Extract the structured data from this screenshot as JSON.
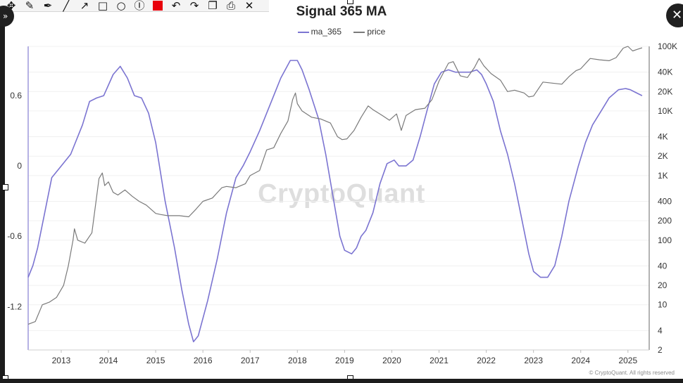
{
  "toolbar": {
    "tools": [
      {
        "icon": "move-icon",
        "glyph": "✥"
      },
      {
        "icon": "pen-icon",
        "glyph": "✎"
      },
      {
        "icon": "marker-icon",
        "glyph": "✒"
      },
      {
        "icon": "line-icon",
        "glyph": "╱"
      },
      {
        "icon": "arrow-icon",
        "glyph": "↗"
      },
      {
        "icon": "rectangle-icon",
        "glyph": "□"
      },
      {
        "icon": "ellipse-icon",
        "glyph": "○"
      },
      {
        "icon": "text-icon",
        "glyph": "Ⓘ"
      },
      {
        "icon": "color-swatch",
        "glyph": "",
        "color": "#e8000b"
      },
      {
        "icon": "undo-icon",
        "glyph": "↶"
      },
      {
        "icon": "redo-icon",
        "glyph": "↷"
      },
      {
        "icon": "copy-icon",
        "glyph": "❐"
      },
      {
        "icon": "save-icon",
        "glyph": "⎙"
      },
      {
        "icon": "close-icon",
        "glyph": "✕"
      }
    ]
  },
  "close_button": {
    "icon": "close-circle-icon",
    "glyph": "✕"
  },
  "corner_button": {
    "icon": "expand-icon",
    "glyph": "»"
  },
  "chart_data": {
    "type": "line",
    "title": "Signal 365 MA",
    "watermark": "CryptoQuant",
    "credit": "© CryptoQuant. All rights reserved",
    "xlabel": "",
    "x_ticks": [
      "2013",
      "2014",
      "2015",
      "2016",
      "2017",
      "2018",
      "2019",
      "2020",
      "2021",
      "2022",
      "2023",
      "2024",
      "2025"
    ],
    "x_range": [
      2012.3,
      2025.45
    ],
    "y_left": {
      "ticks": [
        "0.6",
        "0",
        "-0.6",
        "-1.2"
      ],
      "tick_values": [
        0.6,
        0,
        -0.6,
        -1.2
      ],
      "range": [
        -1.57,
        1.02
      ]
    },
    "y_right": {
      "scale": "log",
      "ticks": [
        "100K",
        "40K",
        "20K",
        "10K",
        "4K",
        "2K",
        "1K",
        "400",
        "200",
        "100",
        "40",
        "20",
        "10",
        "4",
        "2"
      ],
      "tick_values": [
        100000,
        40000,
        20000,
        10000,
        4000,
        2000,
        1000,
        400,
        200,
        100,
        40,
        20,
        10,
        4,
        2
      ],
      "range": [
        2,
        100000
      ]
    },
    "legend_position": "top-center",
    "grid": true,
    "series": [
      {
        "name": "ma_365",
        "axis": "left",
        "color": "#7b74d1",
        "x": [
          2012.3,
          2012.4,
          2012.5,
          2012.65,
          2012.8,
          2013.0,
          2013.2,
          2013.45,
          2013.6,
          2013.75,
          2013.9,
          2014.1,
          2014.25,
          2014.4,
          2014.55,
          2014.7,
          2014.85,
          2015.0,
          2015.2,
          2015.4,
          2015.55,
          2015.7,
          2015.8,
          2015.9,
          2016.1,
          2016.3,
          2016.5,
          2016.7,
          2016.85,
          2017.0,
          2017.2,
          2017.45,
          2017.65,
          2017.85,
          2018.0,
          2018.1,
          2018.25,
          2018.45,
          2018.6,
          2018.75,
          2018.9,
          2019.0,
          2019.15,
          2019.25,
          2019.35,
          2019.45,
          2019.6,
          2019.75,
          2019.9,
          2020.05,
          2020.15,
          2020.3,
          2020.45,
          2020.6,
          2020.75,
          2020.9,
          2021.05,
          2021.2,
          2021.35,
          2021.5,
          2021.65,
          2021.8,
          2021.9,
          2022.0,
          2022.15,
          2022.3,
          2022.45,
          2022.6,
          2022.75,
          2022.9,
          2023.0,
          2023.15,
          2023.3,
          2023.45,
          2023.6,
          2023.75,
          2023.95,
          2024.1,
          2024.25,
          2024.45,
          2024.6,
          2024.8,
          2024.95,
          2025.05,
          2025.15,
          2025.3
        ],
        "y": [
          -0.95,
          -0.85,
          -0.7,
          -0.4,
          -0.1,
          0.0,
          0.1,
          0.35,
          0.55,
          0.58,
          0.6,
          0.78,
          0.85,
          0.75,
          0.6,
          0.58,
          0.45,
          0.2,
          -0.3,
          -0.7,
          -1.05,
          -1.35,
          -1.5,
          -1.45,
          -1.15,
          -0.8,
          -0.4,
          -0.1,
          0.0,
          0.12,
          0.3,
          0.55,
          0.75,
          0.9,
          0.9,
          0.82,
          0.65,
          0.4,
          0.1,
          -0.25,
          -0.6,
          -0.72,
          -0.75,
          -0.7,
          -0.6,
          -0.55,
          -0.4,
          -0.15,
          0.02,
          0.05,
          0.0,
          0.0,
          0.05,
          0.25,
          0.48,
          0.7,
          0.8,
          0.82,
          0.8,
          0.8,
          0.8,
          0.82,
          0.78,
          0.7,
          0.55,
          0.3,
          0.1,
          -0.15,
          -0.45,
          -0.75,
          -0.9,
          -0.95,
          -0.95,
          -0.85,
          -0.6,
          -0.3,
          0.0,
          0.2,
          0.35,
          0.48,
          0.58,
          0.65,
          0.66,
          0.65,
          0.63,
          0.6
        ]
      },
      {
        "name": "price",
        "axis": "right",
        "color": "#7a7a7a",
        "x": [
          2012.3,
          2012.45,
          2012.6,
          2012.75,
          2012.9,
          2013.05,
          2013.15,
          2013.25,
          2013.28,
          2013.35,
          2013.5,
          2013.65,
          2013.8,
          2013.87,
          2013.92,
          2014.0,
          2014.1,
          2014.2,
          2014.35,
          2014.5,
          2014.65,
          2014.8,
          2015.0,
          2015.1,
          2015.25,
          2015.5,
          2015.7,
          2015.85,
          2016.0,
          2016.2,
          2016.4,
          2016.5,
          2016.7,
          2016.9,
          2017.0,
          2017.2,
          2017.35,
          2017.5,
          2017.65,
          2017.8,
          2017.9,
          2017.96,
          2018.0,
          2018.1,
          2018.3,
          2018.5,
          2018.7,
          2018.85,
          2018.95,
          2019.05,
          2019.2,
          2019.35,
          2019.5,
          2019.6,
          2019.8,
          2019.95,
          2020.1,
          2020.2,
          2020.3,
          2020.5,
          2020.7,
          2020.85,
          2021.0,
          2021.1,
          2021.2,
          2021.3,
          2021.45,
          2021.6,
          2021.75,
          2021.85,
          2021.95,
          2022.1,
          2022.3,
          2022.45,
          2022.6,
          2022.8,
          2022.9,
          2023.0,
          2023.2,
          2023.4,
          2023.6,
          2023.75,
          2023.9,
          2024.0,
          2024.2,
          2024.4,
          2024.6,
          2024.75,
          2024.9,
          2025.0,
          2025.1,
          2025.2,
          2025.3
        ],
        "y": [
          5,
          5.5,
          10,
          11,
          13,
          20,
          40,
          100,
          150,
          100,
          90,
          130,
          900,
          1100,
          700,
          800,
          550,
          500,
          600,
          480,
          400,
          350,
          260,
          250,
          240,
          240,
          230,
          300,
          400,
          450,
          650,
          680,
          650,
          750,
          1000,
          1200,
          2500,
          2700,
          4500,
          7000,
          15000,
          19000,
          13000,
          10000,
          8000,
          7500,
          6500,
          4000,
          3600,
          3700,
          5000,
          8000,
          12000,
          10500,
          8500,
          7200,
          9000,
          5000,
          8500,
          10500,
          11000,
          15000,
          29000,
          40000,
          55000,
          58000,
          35000,
          33000,
          47000,
          65000,
          50000,
          38000,
          30000,
          20000,
          21000,
          19000,
          16500,
          17000,
          28000,
          27000,
          26000,
          34000,
          42000,
          45000,
          65000,
          62000,
          60000,
          67000,
          94000,
          100000,
          85000,
          90000,
          95000
        ]
      }
    ]
  }
}
